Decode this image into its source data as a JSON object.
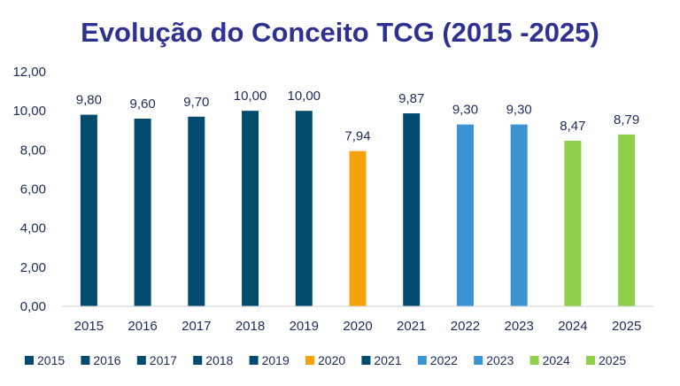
{
  "chart_data": {
    "type": "bar",
    "title": "Evolução do Conceito TCG (2015 -2025)",
    "xlabel": "",
    "ylabel": "",
    "ylim": [
      0,
      12
    ],
    "yticks": [
      0,
      2,
      4,
      6,
      8,
      10,
      12
    ],
    "ytick_labels": [
      "0,00",
      "2,00",
      "4,00",
      "6,00",
      "8,00",
      "10,00",
      "12,00"
    ],
    "categories": [
      "2015",
      "2016",
      "2017",
      "2018",
      "2019",
      "2020",
      "2021",
      "2022",
      "2023",
      "2024",
      "2025"
    ],
    "values": [
      9.8,
      9.6,
      9.7,
      10.0,
      10.0,
      7.94,
      9.87,
      9.3,
      9.3,
      8.47,
      8.79
    ],
    "value_labels": [
      "9,80",
      "9,60",
      "9,70",
      "10,00",
      "10,00",
      "7,94",
      "9,87",
      "9,30",
      "9,30",
      "8,47",
      "8,79"
    ],
    "colors": [
      "#004b6e",
      "#004b6e",
      "#004b6e",
      "#004b6e",
      "#004b6e",
      "#f5a10c",
      "#004b6e",
      "#3a94d4",
      "#3a94d4",
      "#8ecf4b",
      "#8ecf4b"
    ],
    "grid": false,
    "legend": {
      "placement": "bottom",
      "entries": [
        "2015",
        "2016",
        "2017",
        "2018",
        "2019",
        "2020",
        "2021",
        "2022",
        "2023",
        "2024",
        "2025"
      ]
    }
  }
}
